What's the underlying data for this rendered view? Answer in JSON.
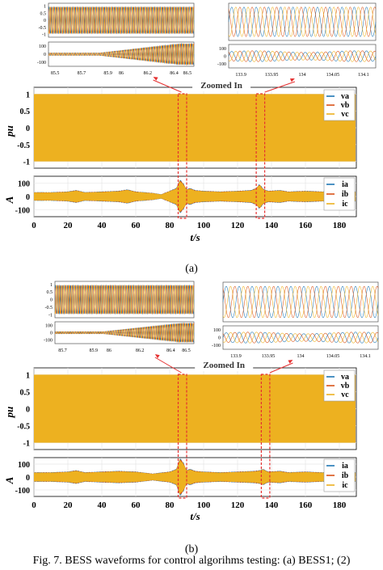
{
  "colors": {
    "a": "#1f77b4",
    "b": "#d95319",
    "c": "#edb120",
    "ann": "#e53030",
    "grid": "#e6e6e6"
  },
  "caption": "Fig. 7. BESS waveforms for control algorihms testing: (a) BESS1; (2)",
  "chart_data": [
    {
      "type": "line",
      "panel": "(a)",
      "zoom_label": "Zoomed In",
      "xlabel": "t/s",
      "xticks": [
        0,
        20,
        40,
        60,
        80,
        100,
        120,
        140,
        160,
        180
      ],
      "xlim": [
        0,
        190
      ],
      "voltage": {
        "ylabel": "pu",
        "ylim": [
          -1.2,
          1.2
        ],
        "yticks": [
          1,
          0.5,
          0,
          -0.5,
          -1
        ],
        "series": [
          {
            "name": "va"
          },
          {
            "name": "vb"
          },
          {
            "name": "vc"
          }
        ],
        "amplitude": 1
      },
      "current": {
        "ylabel": "A",
        "ylim": [
          -150,
          150
        ],
        "yticks": [
          100,
          0,
          -100
        ],
        "series": [
          {
            "name": "ia"
          },
          {
            "name": "ib"
          },
          {
            "name": "ic"
          }
        ],
        "envelope_t": [
          0,
          10,
          20,
          25,
          30,
          40,
          50,
          55,
          60,
          70,
          75,
          80,
          84,
          86,
          88,
          90,
          92,
          95,
          100,
          110,
          120,
          128,
          131,
          133,
          135,
          138,
          145,
          150,
          160,
          170,
          180,
          190
        ],
        "envelope_amp": [
          30,
          30,
          35,
          45,
          30,
          35,
          40,
          50,
          35,
          25,
          15,
          40,
          60,
          120,
          95,
          50,
          60,
          45,
          40,
          35,
          40,
          45,
          60,
          90,
          55,
          40,
          45,
          35,
          40,
          35,
          40,
          35
        ]
      },
      "zoom_windows": [
        [
          85,
          90
        ],
        [
          131,
          136
        ]
      ],
      "inset_left": {
        "xticks": [
          85.5,
          85.7,
          85.9,
          86,
          86.2,
          86.4,
          86.5
        ],
        "xlim": [
          85.45,
          86.55
        ],
        "v_yticks": [
          1,
          0.5,
          0,
          -0.5,
          -1
        ],
        "v_ylim": [
          -1.2,
          1.2
        ],
        "i_yticks": [
          100,
          0,
          -100
        ],
        "i_ylim": [
          -150,
          150
        ],
        "i_amp_start": 15,
        "i_amp_end": 130,
        "cycles": 55
      },
      "inset_right": {
        "xticks": [
          133.9,
          133.95,
          134,
          134.05,
          134.1
        ],
        "xlim": [
          133.88,
          134.12
        ],
        "v_yticks": [],
        "v_ylim": [
          -1.2,
          1.2
        ],
        "i_yticks": [
          100,
          0,
          -100
        ],
        "i_ylim": [
          -150,
          150
        ],
        "i_amp": 70,
        "cycles": 12
      }
    },
    {
      "type": "line",
      "panel": "(b)",
      "zoom_label": "Zoomed In",
      "xlabel": "t/s",
      "xticks": [
        0,
        20,
        40,
        60,
        80,
        100,
        120,
        140,
        160,
        180
      ],
      "xlim": [
        0,
        190
      ],
      "voltage": {
        "ylabel": "pu",
        "ylim": [
          -1.2,
          1.2
        ],
        "yticks": [
          1,
          0.5,
          0,
          -0.5,
          -1
        ],
        "series": [
          {
            "name": "va"
          },
          {
            "name": "vb"
          },
          {
            "name": "vc"
          }
        ],
        "amplitude": 1
      },
      "current": {
        "ylabel": "A",
        "ylim": [
          -150,
          150
        ],
        "yticks": [
          100,
          0,
          -100
        ],
        "series": [
          {
            "name": "ia"
          },
          {
            "name": "ib"
          },
          {
            "name": "ic"
          }
        ],
        "envelope_t": [
          0,
          10,
          20,
          25,
          30,
          40,
          50,
          60,
          70,
          80,
          84,
          86,
          88,
          90,
          92,
          95,
          100,
          110,
          120,
          130,
          133,
          135,
          138,
          145,
          150,
          160,
          170,
          180,
          190
        ],
        "envelope_amp": [
          35,
          35,
          40,
          50,
          35,
          40,
          45,
          40,
          25,
          40,
          60,
          140,
          110,
          50,
          60,
          45,
          40,
          35,
          40,
          45,
          50,
          60,
          40,
          45,
          35,
          40,
          35,
          40,
          35
        ]
      },
      "zoom_windows": [
        [
          85,
          90
        ],
        [
          134,
          139
        ]
      ],
      "inset_left": {
        "xticks": [
          85.7,
          85.9,
          86,
          86.2,
          86.4,
          86.5
        ],
        "xlim": [
          85.65,
          86.55
        ],
        "v_yticks": [
          1,
          0.5,
          0,
          -0.5,
          -1
        ],
        "v_ylim": [
          -1.2,
          1.2
        ],
        "i_yticks": [
          100,
          0,
          -100
        ],
        "i_ylim": [
          -150,
          150
        ],
        "i_amp_start": 15,
        "i_amp_end": 130,
        "cycles": 55
      },
      "inset_right": {
        "xticks": [
          133.9,
          133.95,
          134,
          134.05,
          134.1
        ],
        "xlim": [
          133.88,
          134.12
        ],
        "v_yticks": [],
        "v_ylim": [
          -1.2,
          1.2
        ],
        "i_yticks": [
          100,
          0,
          -100
        ],
        "i_ylim": [
          -150,
          150
        ],
        "i_amp": 70,
        "cycles": 12
      }
    }
  ]
}
